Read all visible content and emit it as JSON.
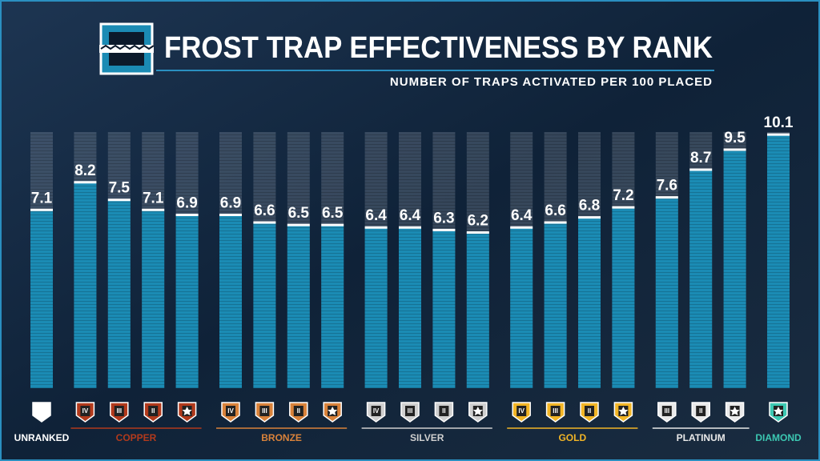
{
  "chart_data": {
    "type": "bar",
    "title": "FROST TRAP EFFECTIVENESS BY RANK",
    "subtitle": "NUMBER OF TRAPS ACTIVATED PER 100 PLACED",
    "ylim": [
      0,
      10.2
    ],
    "color": "#1b8bb4",
    "groups": [
      {
        "name": "UNRANKED",
        "color": "#ffffff",
        "ranks": [
          null
        ],
        "values": [
          7.1
        ]
      },
      {
        "name": "COPPER",
        "color": "#b23a1c",
        "ranks": [
          "IV",
          "III",
          "II",
          null
        ],
        "values": [
          8.2,
          7.5,
          7.1,
          6.9
        ]
      },
      {
        "name": "BRONZE",
        "color": "#d9823a",
        "ranks": [
          "IV",
          "III",
          "II",
          null
        ],
        "values": [
          6.9,
          6.6,
          6.5,
          6.5
        ]
      },
      {
        "name": "SILVER",
        "color": "#cfcfcf",
        "ranks": [
          "IV",
          "III",
          "II",
          null
        ],
        "values": [
          6.4,
          6.4,
          6.3,
          6.2
        ]
      },
      {
        "name": "GOLD",
        "color": "#f2b526",
        "ranks": [
          "IV",
          "III",
          "II",
          null
        ],
        "values": [
          6.4,
          6.6,
          6.8,
          7.2
        ]
      },
      {
        "name": "PLATINUM",
        "color": "#e9e9e9",
        "ranks": [
          "III",
          "II",
          null
        ],
        "values": [
          7.6,
          8.7,
          9.5
        ]
      },
      {
        "name": "DIAMOND",
        "color": "#3cc8b2",
        "ranks": [
          null
        ],
        "values": [
          10.1
        ]
      }
    ]
  }
}
